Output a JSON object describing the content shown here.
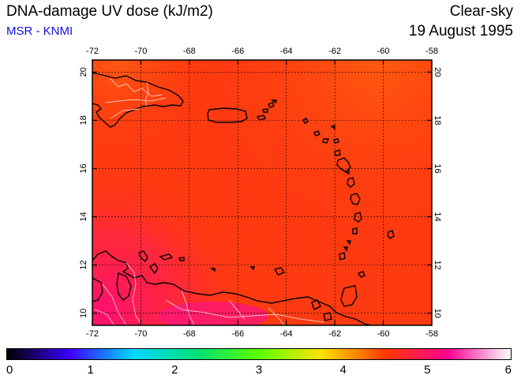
{
  "header": {
    "title": "DNA-damage UV dose (kJ/m2)",
    "source": "MSR - KNMI",
    "sky_condition": "Clear-sky",
    "date": "19 August 1995"
  },
  "map": {
    "lon_range": [
      -72,
      -58
    ],
    "lat_range": [
      9.5,
      20.5
    ],
    "lon_ticks": [
      "-72",
      "-70",
      "-68",
      "-66",
      "-64",
      "-62",
      "-60",
      "-58"
    ],
    "lat_ticks": [
      "20",
      "18",
      "16",
      "14",
      "12",
      "10"
    ],
    "grid": true,
    "field_color": "#ff3a10",
    "coastline_color": "#000000",
    "border_color": "#ffffff"
  },
  "colorbar": {
    "min": 0,
    "max": 6,
    "labels": [
      "0",
      "1",
      "2",
      "3",
      "4",
      "5",
      "6"
    ],
    "colors": [
      "#000000",
      "#3c00ff",
      "#00d8ff",
      "#00e07a",
      "#5cff00",
      "#ffe100",
      "#ff3b00",
      "#ff0090",
      "#ffffff"
    ]
  }
}
